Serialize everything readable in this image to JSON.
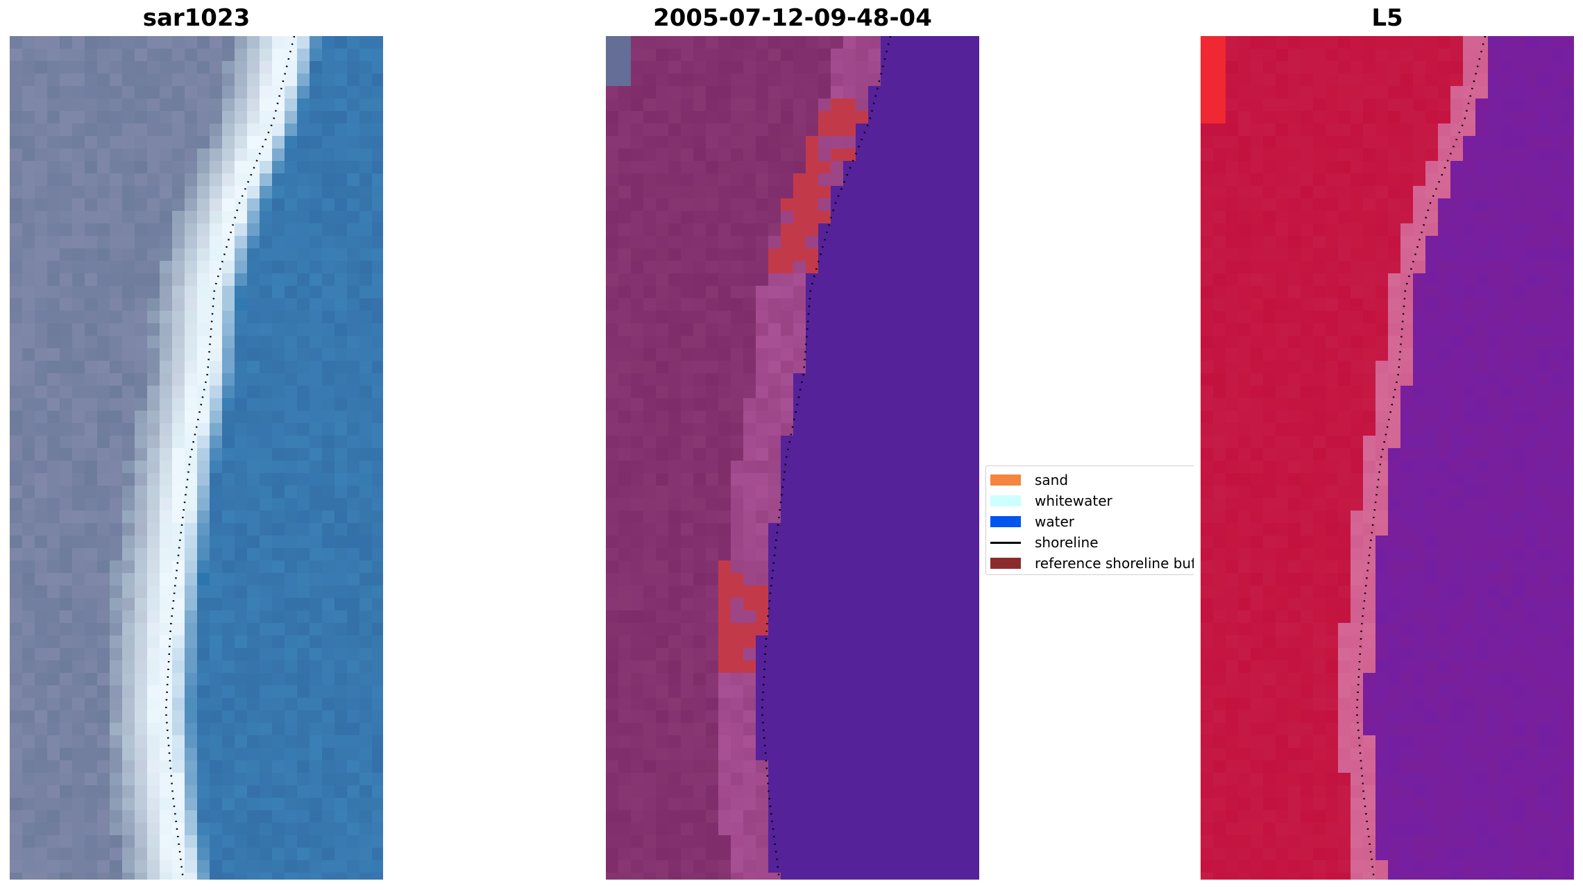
{
  "panels": [
    {
      "id": "rgb",
      "title": "sar1023"
    },
    {
      "id": "classified",
      "title": "2005-07-12-09-48-04"
    },
    {
      "id": "l5",
      "title": "L5"
    }
  ],
  "legend": {
    "items": [
      {
        "label": "sand",
        "color": "#f5853f",
        "kind": "patch"
      },
      {
        "label": "whitewater",
        "color": "#ccffff",
        "kind": "patch"
      },
      {
        "label": "water",
        "color": "#0055ee",
        "kind": "patch"
      },
      {
        "label": "shoreline",
        "color": "#000000",
        "kind": "line"
      },
      {
        "label": "reference shoreline buf",
        "color": "#8c2b2b",
        "kind": "patch"
      }
    ]
  },
  "colors": {
    "rgb_land": "#6e7c9c",
    "rgb_white": "#f0f8ff",
    "rgb_water": "#3a7fb5",
    "cls_land": "#7f2d6a",
    "cls_buffer_red": "#c23a4a",
    "cls_water": "#55229a",
    "l5_land": "#c4123f",
    "l5_water": "#7a1f9a",
    "l5_band": "#d06090"
  }
}
